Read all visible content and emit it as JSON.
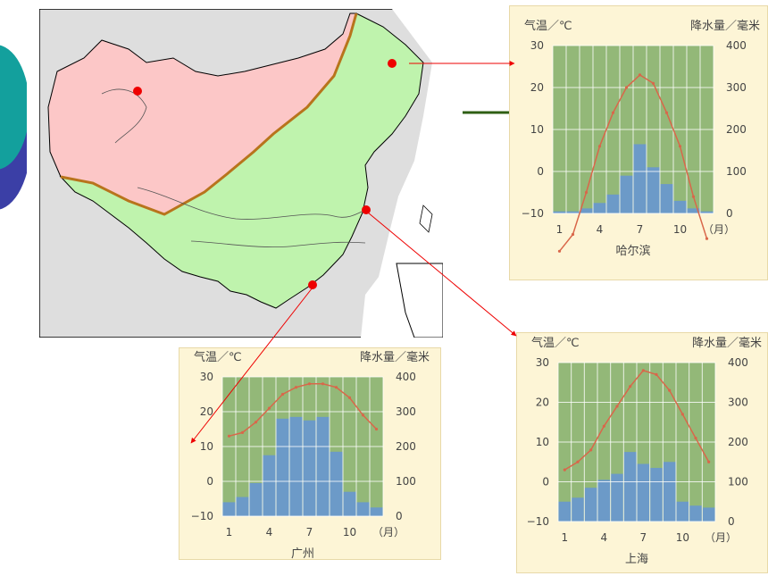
{
  "chart_data": [
    {
      "type": "bar",
      "title": "哈尔滨",
      "y_left_label": "气温／℃",
      "y_right_label": "降水量／毫米",
      "x_unit_label": "（月）",
      "x_tick_labels": [
        "1",
        "4",
        "7",
        "10"
      ],
      "y_left_ticks": [
        "30",
        "20",
        "10",
        "0",
        "−10"
      ],
      "y_right_ticks": [
        "400",
        "300",
        "200",
        "100",
        "0"
      ],
      "y_left_range": [
        -10,
        30
      ],
      "y_right_range": [
        0,
        400
      ],
      "months": [
        1,
        2,
        3,
        4,
        5,
        6,
        7,
        8,
        9,
        10,
        11,
        12
      ],
      "series": [
        {
          "name": "降水量",
          "kind": "bar",
          "axis": "right",
          "values": [
            5,
            5,
            12,
            25,
            45,
            90,
            165,
            110,
            70,
            30,
            12,
            5
          ]
        },
        {
          "name": "气温",
          "kind": "line",
          "axis": "left",
          "values": [
            -19,
            -15,
            -5,
            6,
            14,
            20,
            23,
            21,
            14,
            6,
            -6,
            -16
          ]
        }
      ]
    },
    {
      "type": "bar",
      "title": "广州",
      "y_left_label": "气温／℃",
      "y_right_label": "降水量／毫米",
      "x_unit_label": "（月）",
      "x_tick_labels": [
        "1",
        "4",
        "7",
        "10"
      ],
      "y_left_ticks": [
        "30",
        "20",
        "10",
        "0",
        "−10"
      ],
      "y_right_ticks": [
        "400",
        "300",
        "200",
        "100",
        "0"
      ],
      "y_left_range": [
        -10,
        30
      ],
      "y_right_range": [
        0,
        400
      ],
      "months": [
        1,
        2,
        3,
        4,
        5,
        6,
        7,
        8,
        9,
        10,
        11,
        12
      ],
      "series": [
        {
          "name": "降水量",
          "kind": "bar",
          "axis": "right",
          "values": [
            40,
            55,
            95,
            175,
            280,
            285,
            275,
            285,
            185,
            70,
            40,
            25
          ]
        },
        {
          "name": "气温",
          "kind": "line",
          "axis": "left",
          "values": [
            13,
            14,
            17,
            21,
            25,
            27,
            28,
            28,
            27,
            24,
            19,
            15
          ]
        }
      ]
    },
    {
      "type": "bar",
      "title": "上海",
      "y_left_label": "气温／℃",
      "y_right_label": "降水量／毫米",
      "x_unit_label": "（月）",
      "x_tick_labels": [
        "1",
        "4",
        "7",
        "10"
      ],
      "y_left_ticks": [
        "30",
        "20",
        "10",
        "0",
        "−10"
      ],
      "y_right_ticks": [
        "400",
        "300",
        "200",
        "100",
        "0"
      ],
      "y_left_range": [
        -10,
        30
      ],
      "y_right_range": [
        0,
        400
      ],
      "months": [
        1,
        2,
        3,
        4,
        5,
        6,
        7,
        8,
        9,
        10,
        11,
        12
      ],
      "series": [
        {
          "name": "降水量",
          "kind": "bar",
          "axis": "right",
          "values": [
            50,
            60,
            85,
            105,
            120,
            175,
            145,
            135,
            150,
            50,
            40,
            35
          ]
        },
        {
          "name": "气温",
          "kind": "line",
          "axis": "left",
          "values": [
            3,
            5,
            8,
            14,
            19,
            24,
            28,
            27,
            23,
            17,
            11,
            5
          ]
        }
      ]
    }
  ],
  "colors": {
    "plot_bg": "#93b878",
    "bar": "#6c9ac8",
    "line": "#d9674a",
    "north_region": "#fcc7c7",
    "south_region": "#bff3ad",
    "boundary": "#b8741c",
    "marker": "#ee0000",
    "chart_bg": "#fdf5d6"
  }
}
